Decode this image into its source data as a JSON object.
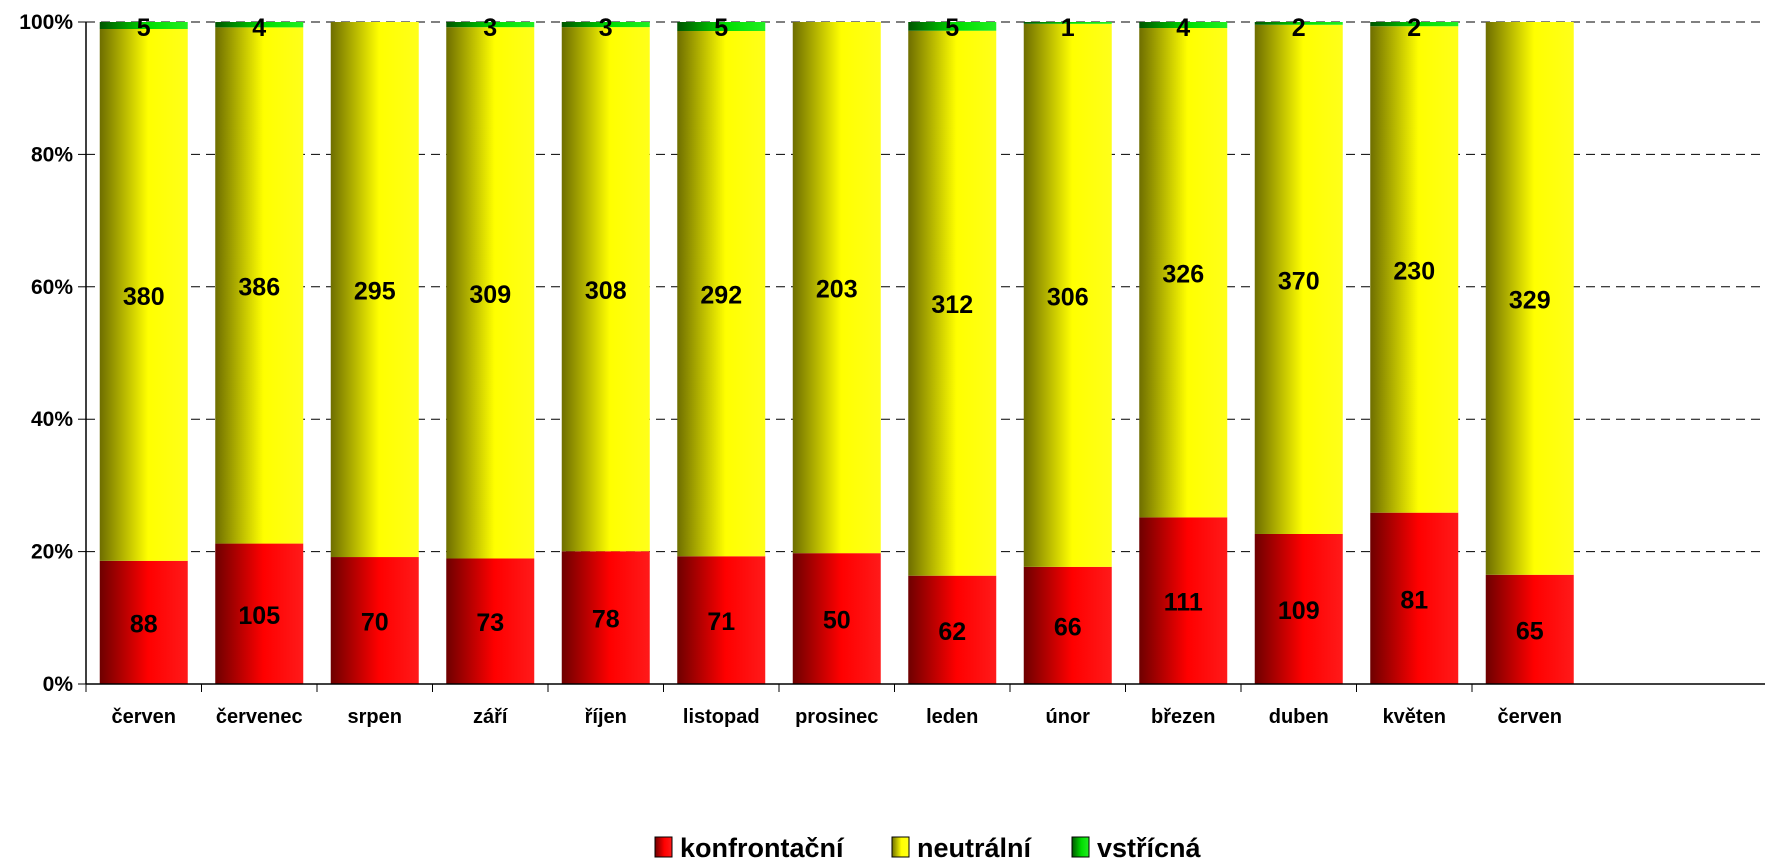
{
  "chart_data": {
    "type": "bar",
    "stacked": true,
    "normalized": true,
    "categories": [
      "červen",
      "červenec",
      "srpen",
      "září",
      "říjen",
      "listopad",
      "prosinec",
      "leden",
      "únor",
      "březen",
      "duben",
      "květen",
      "červen"
    ],
    "series": [
      {
        "name": "konfrontační",
        "values": [
          88,
          105,
          70,
          73,
          78,
          71,
          50,
          62,
          66,
          111,
          109,
          81,
          65
        ],
        "color": "#ff0000"
      },
      {
        "name": "neutrální",
        "values": [
          380,
          386,
          295,
          309,
          308,
          292,
          203,
          312,
          306,
          326,
          370,
          230,
          329
        ],
        "color": "#ffff00"
      },
      {
        "name": "vstřícná",
        "values": [
          5,
          4,
          0,
          3,
          3,
          5,
          0,
          5,
          1,
          4,
          2,
          2,
          0
        ],
        "color": "#00cc00"
      }
    ],
    "yticks": [
      "0%",
      "20%",
      "40%",
      "60%",
      "80%",
      "100%"
    ],
    "ylim": [
      0,
      100
    ],
    "grid": "horizontal dashed",
    "legend_position": "bottom-center"
  }
}
